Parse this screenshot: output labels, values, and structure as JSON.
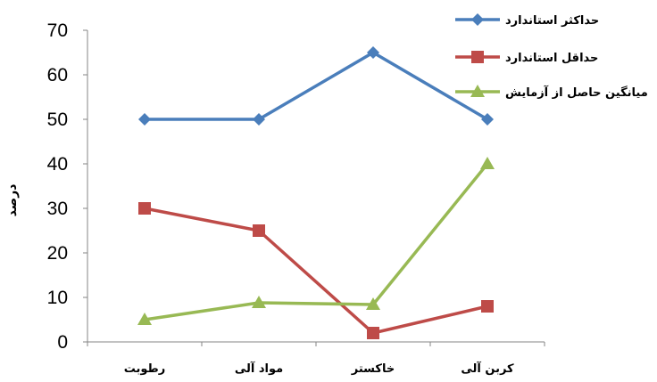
{
  "chart_data": {
    "type": "line",
    "categories": [
      "رطوبت",
      "مواد آلی",
      "خاکستر",
      "کربن آلی"
    ],
    "series": [
      {
        "name": "حداکثر استاندارد",
        "values": [
          50,
          50,
          65,
          50
        ],
        "color": "#4a7ebb",
        "marker": "diamond"
      },
      {
        "name": "حداقل استاندارد",
        "values": [
          30,
          25,
          2,
          8
        ],
        "color": "#be4b48",
        "marker": "square"
      },
      {
        "name": "میانگین حاصل از آزمایش",
        "values": [
          5,
          8.8,
          8.4,
          40
        ],
        "color": "#98b954",
        "marker": "triangle"
      }
    ],
    "ylabel": "درصد",
    "ylim": [
      0,
      70
    ],
    "yticks": [
      "0",
      "10",
      "20",
      "30",
      "40",
      "50",
      "60",
      "70"
    ],
    "legend": "top-right",
    "grid": false
  }
}
